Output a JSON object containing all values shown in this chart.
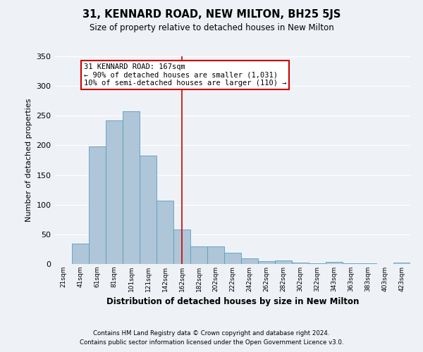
{
  "title": "31, KENNARD ROAD, NEW MILTON, BH25 5JS",
  "subtitle": "Size of property relative to detached houses in New Milton",
  "xlabel": "Distribution of detached houses by size in New Milton",
  "ylabel": "Number of detached properties",
  "categories": [
    "21sqm",
    "41sqm",
    "61sqm",
    "81sqm",
    "101sqm",
    "121sqm",
    "142sqm",
    "162sqm",
    "182sqm",
    "202sqm",
    "222sqm",
    "242sqm",
    "262sqm",
    "282sqm",
    "302sqm",
    "322sqm",
    "343sqm",
    "363sqm",
    "383sqm",
    "403sqm",
    "423sqm"
  ],
  "values": [
    0,
    35,
    198,
    242,
    258,
    183,
    107,
    58,
    30,
    30,
    19,
    10,
    5,
    6,
    2,
    1,
    3,
    1,
    1,
    0,
    2
  ],
  "bar_color": "#aec6d8",
  "bar_edge_color": "#5a9ec0",
  "background_color": "#eef2f7",
  "grid_color": "#ffffff",
  "vline_x_index": 7,
  "vline_color": "#cc0000",
  "annotation_text": "31 KENNARD ROAD: 167sqm\n← 90% of detached houses are smaller (1,031)\n10% of semi-detached houses are larger (110) →",
  "annotation_box_color": "#ffffff",
  "annotation_box_edge": "#cc0000",
  "ylim": [
    0,
    350
  ],
  "yticks": [
    0,
    50,
    100,
    150,
    200,
    250,
    300,
    350
  ],
  "footer_line1": "Contains HM Land Registry data © Crown copyright and database right 2024.",
  "footer_line2": "Contains public sector information licensed under the Open Government Licence v3.0."
}
